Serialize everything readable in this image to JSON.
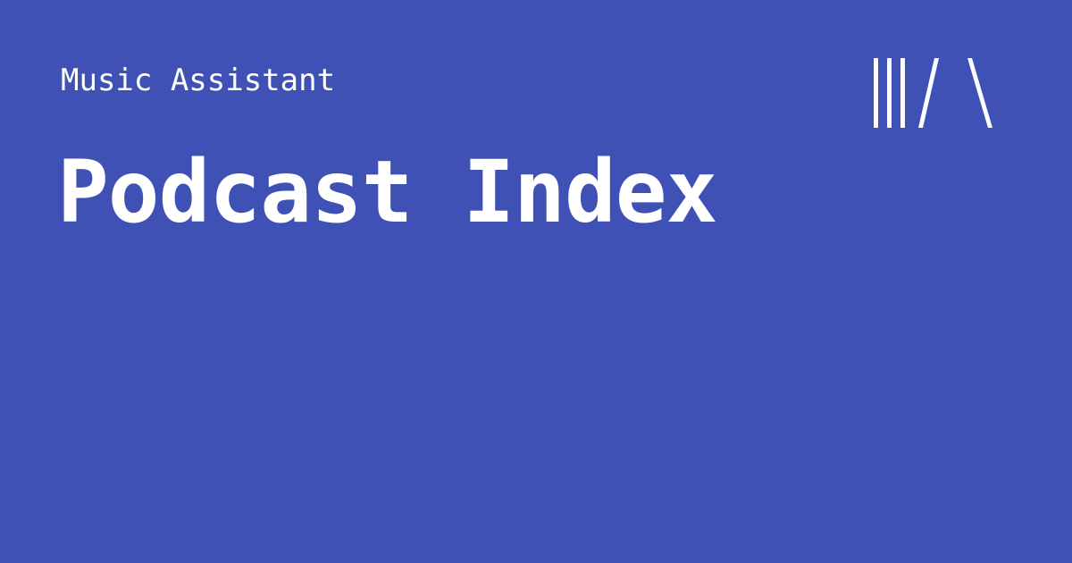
{
  "header": {
    "site_name": "Music Assistant",
    "logo_icon": "music-assistant-logo-icon"
  },
  "main": {
    "title": "Podcast Index"
  },
  "colors": {
    "background": "#3f51b5",
    "text": "#ffffff"
  }
}
